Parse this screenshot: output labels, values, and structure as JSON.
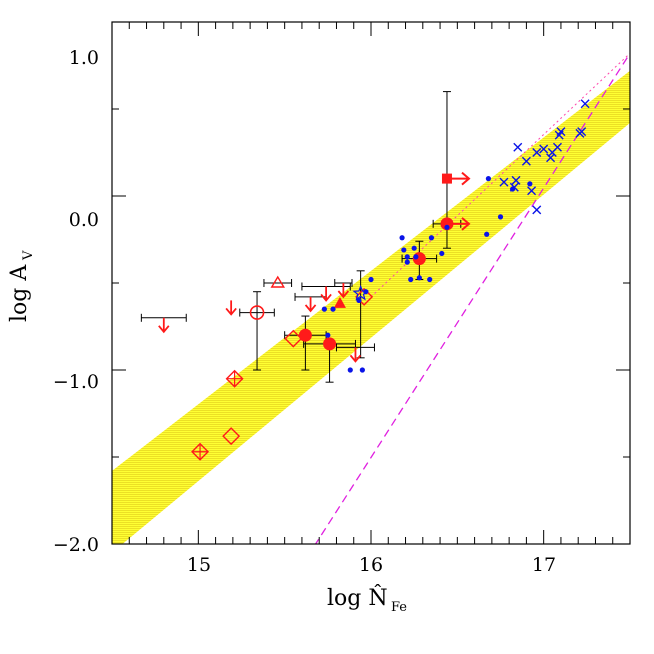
{
  "chart_data": {
    "type": "scatter",
    "title": "",
    "xlabel_main": "log N̂",
    "xlabel_sub": "Fe",
    "ylabel_main": "log A",
    "ylabel_sub": "V",
    "xlim": [
      14.5,
      17.5
    ],
    "ylim": [
      -2.0,
      1.0
    ],
    "x_ticks": [
      15,
      16,
      17
    ],
    "x_tick_labels": [
      "15",
      "16",
      "17"
    ],
    "y_ticks": [
      -2.0,
      -1.0,
      0.0,
      1.0
    ],
    "y_tick_labels": [
      "−2.0",
      "−1.0",
      "0.0",
      "1.0"
    ],
    "grid": false,
    "colors": {
      "band": "#ffff33",
      "band_stripe": "#e8d820",
      "fit_line": "#ff44aa",
      "dashed_line": "#e020e0",
      "red": "#ff1a1a",
      "blue": "#0a14e8",
      "black": "#000000"
    },
    "band": {
      "x": [
        14.5,
        17.5
      ],
      "upper": [
        -1.58,
        0.72
      ],
      "lower": [
        -2.05,
        0.42
      ]
    },
    "fit_line": {
      "x": [
        16.0,
        17.5
      ],
      "y": [
        -0.58,
        0.82
      ]
    },
    "dashed_line": {
      "x": [
        15.55,
        17.5
      ],
      "y": [
        -2.2,
        0.82
      ]
    },
    "series": [
      {
        "marker": "filled-circle",
        "color": "red",
        "points": [
          {
            "x": 15.62,
            "y": -0.8,
            "xerr": 0.12,
            "yerr_up": 0.11,
            "yerr_down": 0.2
          },
          {
            "x": 15.76,
            "y": -0.85,
            "xerr": 0.15,
            "yerr_up": 0.0,
            "yerr_down": 0.22
          },
          {
            "x": 16.28,
            "y": -0.36,
            "xerr": 0.1,
            "yerr_up": 0.1,
            "yerr_down": 0.12
          },
          {
            "x": 16.44,
            "y": -0.16,
            "xerr": 0.08,
            "yerr_up": 0.76,
            "yerr_down": 0.14
          }
        ]
      },
      {
        "marker": "filled-square-arrow-right",
        "color": "red",
        "points": [
          {
            "x": 16.44,
            "y": 0.1
          }
        ]
      },
      {
        "marker": "open-circle",
        "color": "red",
        "points": [
          {
            "x": 15.34,
            "y": -0.67,
            "xerr": 0.1,
            "yerr_up": 0.12,
            "yerr_down": 0.33
          }
        ]
      },
      {
        "marker": "open-diamond",
        "color": "red",
        "points": [
          {
            "x": 15.19,
            "y": -1.38
          },
          {
            "x": 15.55,
            "y": -0.82
          },
          {
            "x": 15.96,
            "y": -0.58
          }
        ]
      },
      {
        "marker": "crossed-diamond",
        "color": "red",
        "points": [
          {
            "x": 15.01,
            "y": -1.47
          },
          {
            "x": 15.21,
            "y": -1.05
          }
        ]
      },
      {
        "marker": "open-triangle",
        "color": "red",
        "points": [
          {
            "x": 15.46,
            "y": -0.5,
            "xerr": 0.08
          }
        ]
      },
      {
        "marker": "filled-triangle",
        "color": "red",
        "points": [
          {
            "x": 15.82,
            "y": -0.62
          }
        ]
      },
      {
        "marker": "upper-limit-arrow",
        "color": "red",
        "points": [
          {
            "x": 14.8,
            "y": -0.7,
            "xerr": 0.13
          },
          {
            "x": 15.19,
            "y": -0.6
          },
          {
            "x": 15.65,
            "y": -0.58,
            "xerr": 0.09
          },
          {
            "x": 15.74,
            "y": -0.52,
            "xerr": 0.14
          },
          {
            "x": 15.84,
            "y": -0.5,
            "xerr": 0.05
          },
          {
            "x": 15.91,
            "y": -0.87,
            "xerr": 0.11
          }
        ]
      },
      {
        "marker": "lower-limit-arrow-right",
        "color": "red",
        "points": [
          {
            "x": 16.44,
            "y": -0.16
          }
        ]
      },
      {
        "marker": "star",
        "color": "blue",
        "points": [
          {
            "x": 15.94,
            "y": -0.56,
            "yerr_up": 0.13,
            "yerr_down": 0.37
          }
        ]
      },
      {
        "marker": "dot",
        "color": "blue",
        "points": [
          {
            "x": 15.73,
            "y": -0.65
          },
          {
            "x": 15.78,
            "y": -0.65
          },
          {
            "x": 15.75,
            "y": -0.8
          },
          {
            "x": 15.88,
            "y": -1.0
          },
          {
            "x": 15.95,
            "y": -1.0
          },
          {
            "x": 15.93,
            "y": -0.6
          },
          {
            "x": 15.97,
            "y": -0.55
          },
          {
            "x": 16.0,
            "y": -0.48
          },
          {
            "x": 16.18,
            "y": -0.24
          },
          {
            "x": 16.19,
            "y": -0.31
          },
          {
            "x": 16.21,
            "y": -0.35
          },
          {
            "x": 16.21,
            "y": -0.38
          },
          {
            "x": 16.23,
            "y": -0.48
          },
          {
            "x": 16.25,
            "y": -0.3
          },
          {
            "x": 16.26,
            "y": -0.35
          },
          {
            "x": 16.28,
            "y": -0.47
          },
          {
            "x": 16.34,
            "y": -0.48
          },
          {
            "x": 16.35,
            "y": -0.24
          },
          {
            "x": 16.41,
            "y": -0.33
          },
          {
            "x": 16.44,
            "y": -0.18
          },
          {
            "x": 16.67,
            "y": -0.22
          },
          {
            "x": 16.68,
            "y": 0.1
          },
          {
            "x": 16.75,
            "y": -0.12
          },
          {
            "x": 16.82,
            "y": 0.04
          },
          {
            "x": 16.92,
            "y": 0.07
          }
        ]
      },
      {
        "marker": "cross",
        "color": "blue",
        "points": [
          {
            "x": 16.77,
            "y": 0.08
          },
          {
            "x": 16.83,
            "y": 0.05
          },
          {
            "x": 16.84,
            "y": 0.09
          },
          {
            "x": 16.85,
            "y": 0.28
          },
          {
            "x": 16.9,
            "y": 0.2
          },
          {
            "x": 16.93,
            "y": 0.03
          },
          {
            "x": 16.96,
            "y": 0.25
          },
          {
            "x": 17.0,
            "y": 0.27
          },
          {
            "x": 17.04,
            "y": 0.22
          },
          {
            "x": 17.05,
            "y": 0.25
          },
          {
            "x": 17.08,
            "y": 0.28
          },
          {
            "x": 17.09,
            "y": 0.35
          },
          {
            "x": 17.1,
            "y": 0.37
          },
          {
            "x": 17.21,
            "y": 0.36
          },
          {
            "x": 17.22,
            "y": 0.37
          },
          {
            "x": 17.24,
            "y": 0.53
          },
          {
            "x": 16.96,
            "y": -0.08
          }
        ]
      }
    ]
  }
}
